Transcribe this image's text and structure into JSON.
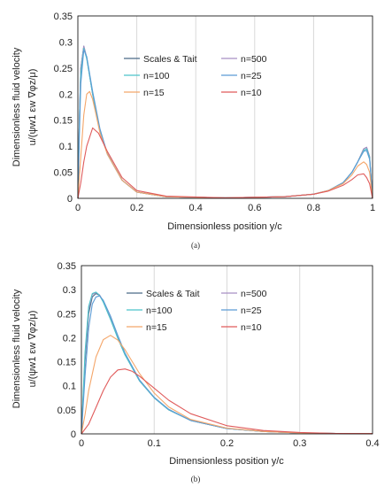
{
  "colors": {
    "scales_tait": "#4a6a88",
    "n500": "#a78fc4",
    "n100": "#4cc3c9",
    "n25": "#5b9bd5",
    "n15": "#f4a66a",
    "n10": "#e05b5b"
  },
  "chart_data": [
    {
      "type": "line",
      "caption": "(a)",
      "xlabel": "Dimensionless position y/c",
      "ylabel_line1": "Dimensionless fluid velocity",
      "ylabel_line2": "u/(ψw1 εw ∇φz/μ)",
      "xlim": [
        0,
        1
      ],
      "ylim": [
        0,
        0.35
      ],
      "xticks": [
        "0",
        "0.2",
        "0.4",
        "0.6",
        "0.8",
        "1"
      ],
      "yticks": [
        "0",
        "0.05",
        "0.1",
        "0.15",
        "0.2",
        "0.25",
        "0.3",
        "0.35"
      ],
      "grid": "vertical",
      "legend": [
        "Scales & Tait",
        "n=500",
        "n=100",
        "n=25",
        "n=15",
        "n=10"
      ],
      "series": [
        {
          "name": "Scales & Tait",
          "x": [
            0,
            0.005,
            0.01,
            0.02,
            0.03,
            0.05,
            0.075,
            0.1,
            0.15,
            0.2,
            0.3,
            0.5,
            0.7,
            0.8,
            0.85,
            0.9,
            0.93,
            0.95,
            0.97,
            0.98,
            0.99,
            1.0
          ],
          "y": [
            0,
            0.15,
            0.25,
            0.292,
            0.27,
            0.2,
            0.13,
            0.085,
            0.035,
            0.012,
            0.003,
            0.001,
            0.003,
            0.008,
            0.015,
            0.03,
            0.05,
            0.07,
            0.095,
            0.098,
            0.08,
            0
          ]
        },
        {
          "name": "n=500",
          "x": [
            0,
            0.005,
            0.01,
            0.02,
            0.03,
            0.05,
            0.075,
            0.1,
            0.15,
            0.2,
            0.3,
            0.5,
            0.7,
            0.8,
            0.85,
            0.9,
            0.93,
            0.95,
            0.97,
            0.98,
            0.99,
            1.0
          ],
          "y": [
            0,
            0.15,
            0.25,
            0.292,
            0.27,
            0.2,
            0.13,
            0.085,
            0.035,
            0.012,
            0.003,
            0.001,
            0.003,
            0.008,
            0.015,
            0.03,
            0.05,
            0.07,
            0.095,
            0.098,
            0.08,
            0
          ]
        },
        {
          "name": "n=100",
          "x": [
            0,
            0.005,
            0.01,
            0.02,
            0.03,
            0.05,
            0.075,
            0.1,
            0.15,
            0.2,
            0.3,
            0.5,
            0.7,
            0.8,
            0.85,
            0.9,
            0.93,
            0.95,
            0.97,
            0.98,
            0.99,
            1.0
          ],
          "y": [
            0,
            0.14,
            0.24,
            0.288,
            0.268,
            0.2,
            0.13,
            0.085,
            0.035,
            0.012,
            0.003,
            0.001,
            0.003,
            0.008,
            0.015,
            0.03,
            0.05,
            0.07,
            0.092,
            0.095,
            0.078,
            0
          ]
        },
        {
          "name": "n=25",
          "x": [
            0,
            0.005,
            0.01,
            0.02,
            0.03,
            0.05,
            0.075,
            0.1,
            0.15,
            0.2,
            0.3,
            0.5,
            0.7,
            0.8,
            0.85,
            0.9,
            0.93,
            0.95,
            0.97,
            0.98,
            0.99,
            1.0
          ],
          "y": [
            0,
            0.12,
            0.22,
            0.285,
            0.272,
            0.205,
            0.133,
            0.086,
            0.035,
            0.012,
            0.003,
            0.001,
            0.003,
            0.008,
            0.015,
            0.03,
            0.05,
            0.07,
            0.09,
            0.092,
            0.075,
            0
          ]
        },
        {
          "name": "n=15",
          "x": [
            0,
            0.01,
            0.02,
            0.03,
            0.04,
            0.05,
            0.06,
            0.075,
            0.1,
            0.15,
            0.2,
            0.3,
            0.5,
            0.7,
            0.8,
            0.85,
            0.9,
            0.93,
            0.95,
            0.97,
            0.98,
            0.99,
            1.0
          ],
          "y": [
            0,
            0.08,
            0.16,
            0.2,
            0.205,
            0.19,
            0.165,
            0.125,
            0.085,
            0.035,
            0.012,
            0.003,
            0.001,
            0.003,
            0.008,
            0.015,
            0.028,
            0.045,
            0.062,
            0.07,
            0.065,
            0.05,
            0
          ]
        },
        {
          "name": "n=10",
          "x": [
            0,
            0.01,
            0.02,
            0.03,
            0.05,
            0.07,
            0.1,
            0.15,
            0.2,
            0.3,
            0.5,
            0.7,
            0.8,
            0.85,
            0.9,
            0.93,
            0.95,
            0.97,
            0.98,
            0.99,
            1.0
          ],
          "y": [
            0,
            0.03,
            0.07,
            0.1,
            0.135,
            0.125,
            0.09,
            0.04,
            0.015,
            0.004,
            0.001,
            0.003,
            0.008,
            0.014,
            0.025,
            0.036,
            0.045,
            0.047,
            0.04,
            0.028,
            0
          ]
        }
      ]
    },
    {
      "type": "line",
      "caption": "(b)",
      "xlabel": "Dimensionless position y/c",
      "ylabel_line1": "Dimensionless fluid velocity",
      "ylabel_line2": "u/(ψw1 εw ∇φz/μ)",
      "xlim": [
        0,
        0.4
      ],
      "ylim": [
        0,
        0.35
      ],
      "xticks": [
        "0",
        "0.1",
        "0.2",
        "0.3",
        "0.4"
      ],
      "yticks": [
        "0",
        "0.05",
        "0.1",
        "0.15",
        "0.2",
        "0.25",
        "0.3",
        "0.35"
      ],
      "grid": "vertical",
      "legend": [
        "Scales & Tait",
        "n=500",
        "n=100",
        "n=25",
        "n=15",
        "n=10"
      ],
      "series": [
        {
          "name": "Scales & Tait",
          "x": [
            0,
            0.005,
            0.01,
            0.015,
            0.02,
            0.025,
            0.03,
            0.04,
            0.05,
            0.06,
            0.08,
            0.1,
            0.12,
            0.15,
            0.2,
            0.25,
            0.3,
            0.35,
            0.4
          ],
          "y": [
            0,
            0.15,
            0.25,
            0.285,
            0.292,
            0.288,
            0.275,
            0.24,
            0.2,
            0.165,
            0.11,
            0.075,
            0.05,
            0.028,
            0.011,
            0.005,
            0.002,
            0.001,
            0.0005
          ]
        },
        {
          "name": "n=500",
          "x": [
            0,
            0.005,
            0.01,
            0.015,
            0.02,
            0.025,
            0.03,
            0.04,
            0.05,
            0.06,
            0.08,
            0.1,
            0.12,
            0.15,
            0.2,
            0.25,
            0.3,
            0.35,
            0.4
          ],
          "y": [
            0,
            0.16,
            0.26,
            0.29,
            0.294,
            0.289,
            0.276,
            0.24,
            0.2,
            0.165,
            0.11,
            0.075,
            0.05,
            0.028,
            0.011,
            0.005,
            0.002,
            0.001,
            0.0005
          ]
        },
        {
          "name": "n=100",
          "x": [
            0,
            0.005,
            0.01,
            0.015,
            0.02,
            0.025,
            0.03,
            0.04,
            0.05,
            0.06,
            0.08,
            0.1,
            0.12,
            0.15,
            0.2,
            0.25,
            0.3,
            0.35,
            0.4
          ],
          "y": [
            0,
            0.17,
            0.265,
            0.292,
            0.295,
            0.288,
            0.274,
            0.238,
            0.199,
            0.164,
            0.11,
            0.075,
            0.05,
            0.028,
            0.011,
            0.005,
            0.002,
            0.001,
            0.0005
          ]
        },
        {
          "name": "n=25",
          "x": [
            0,
            0.005,
            0.01,
            0.015,
            0.02,
            0.025,
            0.03,
            0.04,
            0.05,
            0.06,
            0.08,
            0.1,
            0.12,
            0.15,
            0.2,
            0.25,
            0.3,
            0.35,
            0.4
          ],
          "y": [
            0,
            0.12,
            0.22,
            0.27,
            0.285,
            0.287,
            0.278,
            0.245,
            0.205,
            0.168,
            0.112,
            0.076,
            0.051,
            0.028,
            0.011,
            0.005,
            0.002,
            0.001,
            0.0005
          ]
        },
        {
          "name": "n=15",
          "x": [
            0,
            0.005,
            0.01,
            0.02,
            0.03,
            0.04,
            0.05,
            0.06,
            0.08,
            0.1,
            0.12,
            0.15,
            0.2,
            0.25,
            0.3,
            0.35,
            0.4
          ],
          "y": [
            0,
            0.04,
            0.09,
            0.16,
            0.196,
            0.205,
            0.195,
            0.175,
            0.125,
            0.085,
            0.056,
            0.03,
            0.012,
            0.005,
            0.002,
            0.001,
            0.0005
          ]
        },
        {
          "name": "n=10",
          "x": [
            0,
            0.01,
            0.02,
            0.03,
            0.04,
            0.05,
            0.06,
            0.07,
            0.08,
            0.1,
            0.12,
            0.15,
            0.2,
            0.25,
            0.3,
            0.35,
            0.4
          ],
          "y": [
            0,
            0.02,
            0.055,
            0.09,
            0.118,
            0.133,
            0.135,
            0.13,
            0.12,
            0.095,
            0.07,
            0.042,
            0.017,
            0.007,
            0.003,
            0.001,
            0.0005
          ]
        }
      ]
    }
  ]
}
